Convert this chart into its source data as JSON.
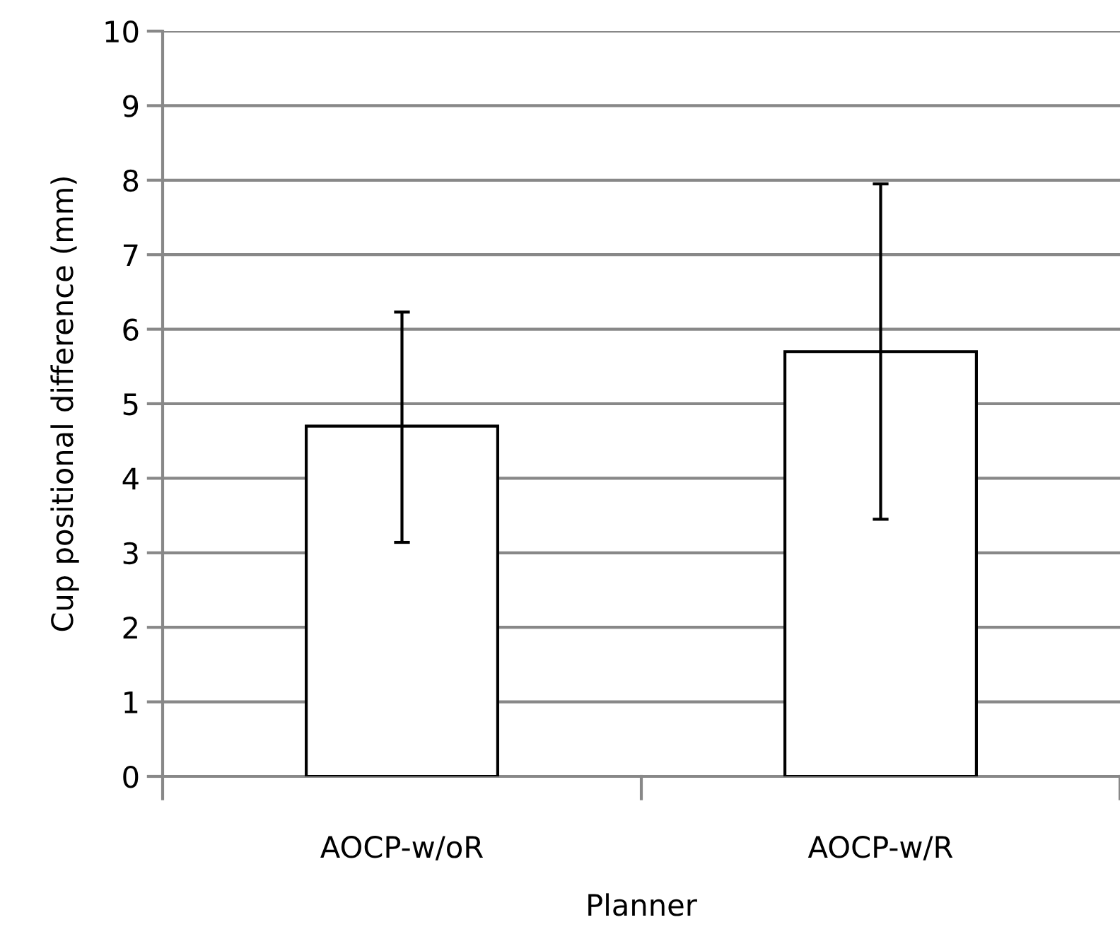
{
  "chart_data": {
    "type": "bar",
    "xlabel": "Planner",
    "ylabel": "Cup positional difference (mm)",
    "categories": [
      "AOCP-w/oR",
      "AOCP-w/R"
    ],
    "values": [
      4.7,
      5.7
    ],
    "errors": [
      [
        3.14,
        6.23
      ],
      [
        3.45,
        7.95
      ]
    ],
    "color": "#ffffff",
    "ylim": [
      0,
      10
    ],
    "yticks": [
      0,
      1,
      2,
      3,
      4,
      5,
      6,
      7,
      8,
      9,
      10
    ],
    "grid": "y"
  }
}
